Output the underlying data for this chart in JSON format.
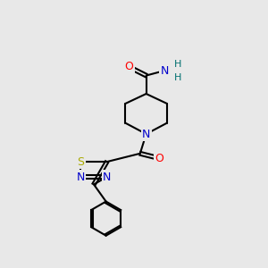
{
  "bg_color": "#e8e8e8",
  "bond_color": "#000000",
  "atom_colors": {
    "N": "#0000cc",
    "O": "#ff0000",
    "S": "#aaaa00",
    "C": "#000000",
    "H": "#007070"
  },
  "figsize": [
    3.0,
    3.0
  ],
  "dpi": 100,
  "lw": 1.5,
  "font_size": 9
}
